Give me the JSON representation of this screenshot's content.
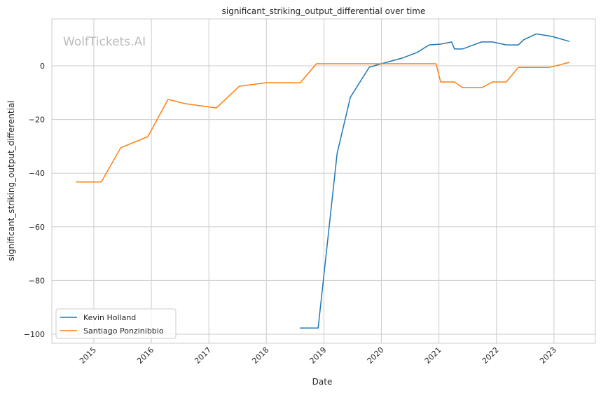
{
  "watermark": "WolfTickets.AI",
  "chart_data": {
    "type": "line",
    "title": "significant_striking_output_differential over time",
    "xlabel": "Date",
    "ylabel": "significant_striking_output_differential",
    "xlim": [
      2014.27,
      2023.72
    ],
    "ylim": [
      -103.4,
      17.5
    ],
    "xticks": [
      2015,
      2016,
      2017,
      2018,
      2019,
      2020,
      2021,
      2022,
      2023
    ],
    "xtick_labels": [
      "2015",
      "2016",
      "2017",
      "2018",
      "2019",
      "2020",
      "2021",
      "2022",
      "2023"
    ],
    "yticks": [
      0,
      -20,
      -40,
      -60,
      -80,
      -100
    ],
    "ytick_labels": [
      "0",
      "−20",
      "−40",
      "−60",
      "−80",
      "−100"
    ],
    "grid": true,
    "legend_position": "bottom-left",
    "series": [
      {
        "name": "Kevin Holland",
        "color": "#1f77b4",
        "x": [
          2018.58,
          2018.9,
          2019.23,
          2019.46,
          2019.79,
          2020.0,
          2020.36,
          2020.62,
          2020.83,
          2021.03,
          2021.22,
          2021.27,
          2021.41,
          2021.74,
          2021.93,
          2022.17,
          2022.38,
          2022.47,
          2022.69,
          2022.96,
          2023.27
        ],
        "y": [
          -97.7,
          -97.7,
          -32.6,
          -11.7,
          -0.5,
          0.8,
          2.9,
          5.0,
          7.8,
          8.1,
          8.9,
          6.3,
          6.3,
          8.9,
          8.9,
          7.8,
          7.8,
          9.7,
          11.9,
          11.0,
          9.1
        ]
      },
      {
        "name": "Santiago Ponzinibbio",
        "color": "#ff7f0e",
        "x": [
          2014.69,
          2015.13,
          2015.47,
          2015.94,
          2016.29,
          2016.59,
          2017.13,
          2017.53,
          2018.0,
          2018.59,
          2018.87,
          2020.95,
          2021.03,
          2021.27,
          2021.41,
          2021.75,
          2021.93,
          2022.17,
          2022.38,
          2022.92,
          2023.27
        ],
        "y": [
          -43.3,
          -43.3,
          -30.5,
          -26.4,
          -12.5,
          -14.1,
          -15.7,
          -7.6,
          -6.3,
          -6.3,
          0.8,
          0.8,
          -6.0,
          -6.0,
          -8.1,
          -8.1,
          -6.0,
          -6.0,
          -0.6,
          -0.6,
          1.3
        ]
      }
    ]
  }
}
